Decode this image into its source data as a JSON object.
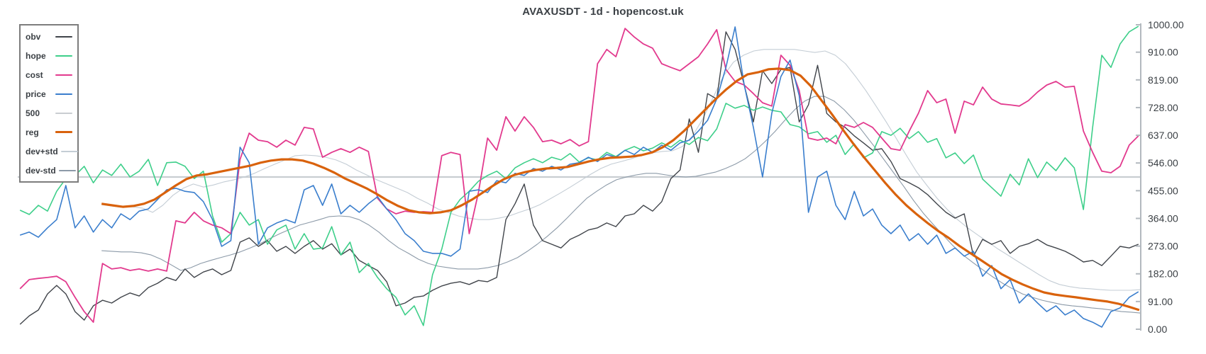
{
  "title": "AVAXUSDT - 1d - hopencost.uk",
  "axis": {
    "side": "right",
    "line_color": "#b3b9bf",
    "tick_color": "#b3b9bf",
    "label_color": "#3b4045",
    "tick_labels": [
      "1000.00",
      "910.00",
      "819.00",
      "728.00",
      "637.00",
      "546.00",
      "455.00",
      "364.00",
      "273.00",
      "182.00",
      "91.00",
      "0.00"
    ],
    "tick_values": [
      1000,
      910,
      819,
      728,
      637,
      546,
      455,
      364,
      273,
      182,
      91,
      0
    ]
  },
  "legend": {
    "items": [
      "obv",
      "hope",
      "cost",
      "price",
      "500",
      "reg",
      "dev+std",
      "dev-std"
    ]
  },
  "chart_data": {
    "type": "line",
    "title": "AVAXUSDT - 1d - hopencost.uk",
    "xlabel": "",
    "ylabel": "",
    "x_range_days": [
      0,
      245
    ],
    "ylim": [
      0,
      1000
    ],
    "grid": false,
    "legend_position": "top-left",
    "draw_order": [
      "500",
      "dev+std",
      "dev-std",
      "obv",
      "hope",
      "cost",
      "price",
      "reg"
    ],
    "series": [
      {
        "name": "obv",
        "color": "#40444a",
        "width": 1.4,
        "x0": 0.5,
        "dx": 2.0,
        "values": [
          16,
          44,
          63,
          116,
          144,
          116,
          58,
          30,
          77,
          95,
          86,
          105,
          119,
          109,
          137,
          151,
          170,
          160,
          198,
          170,
          188,
          198,
          179,
          193,
          286,
          300,
          272,
          291,
          256,
          272,
          249,
          272,
          291,
          263,
          281,
          244,
          263,
          226,
          209,
          193,
          156,
          77,
          86,
          105,
          109,
          128,
          142,
          151,
          156,
          147,
          160,
          156,
          170,
          360,
          412,
          477,
          342,
          291,
          279,
          267,
          295,
          309,
          326,
          333,
          349,
          337,
          372,
          379,
          407,
          388,
          419,
          495,
          523,
          691,
          581,
          774,
          756,
          977,
          919,
          802,
          681,
          849,
          807,
          853,
          860,
          681,
          737,
          867,
          709,
          681,
          663,
          635,
          612,
          588,
          593,
          551,
          495,
          481,
          465,
          442,
          412,
          384,
          365,
          379,
          240,
          295,
          279,
          291,
          249,
          272,
          281,
          295,
          277,
          267,
          256,
          240,
          221,
          226,
          209,
          240,
          272,
          267,
          279
        ]
      },
      {
        "name": "hope",
        "color": "#3ecf8a",
        "width": 1.6,
        "x0": 0.5,
        "dx": 2.0,
        "values": [
          391,
          377,
          407,
          388,
          453,
          495,
          505,
          535,
          481,
          523,
          505,
          542,
          500,
          519,
          558,
          472,
          547,
          549,
          535,
          495,
          519,
          372,
          286,
          314,
          384,
          342,
          360,
          279,
          326,
          342,
          263,
          314,
          263,
          267,
          337,
          244,
          286,
          186,
          216,
          170,
          133,
          105,
          47,
          77,
          12,
          179,
          263,
          384,
          426,
          453,
          486,
          505,
          519,
          495,
          530,
          547,
          560,
          547,
          565,
          556,
          577,
          549,
          563,
          556,
          581,
          567,
          588,
          600,
          586,
          595,
          612,
          598,
          621,
          607,
          630,
          619,
          658,
          742,
          726,
          735,
          719,
          730,
          719,
          714,
          672,
          665,
          642,
          649,
          614,
          637,
          574,
          609,
          563,
          579,
          649,
          637,
          660,
          626,
          649,
          614,
          626,
          563,
          579,
          544,
          572,
          493,
          465,
          437,
          509,
          474,
          560,
          498,
          549,
          521,
          563,
          530,
          393,
          663,
          900,
          860,
          937,
          977,
          995
        ]
      },
      {
        "name": "cost",
        "color": "#e23a8e",
        "width": 1.8,
        "x0": 0.5,
        "dx": 2.0,
        "values": [
          133,
          163,
          167,
          170,
          174,
          156,
          105,
          58,
          23,
          216,
          198,
          202,
          193,
          198,
          191,
          198,
          191,
          356,
          349,
          384,
          356,
          342,
          333,
          314,
          558,
          644,
          621,
          616,
          598,
          621,
          605,
          663,
          658,
          565,
          581,
          593,
          581,
          598,
          584,
          430,
          395,
          379,
          388,
          384,
          386,
          384,
          570,
          581,
          574,
          314,
          449,
          628,
          588,
          698,
          651,
          698,
          663,
          616,
          621,
          609,
          623,
          602,
          616,
          872,
          919,
          895,
          988,
          960,
          937,
          923,
          872,
          860,
          849,
          872,
          895,
          937,
          984,
          853,
          814,
          802,
          774,
          744,
          733,
          900,
          867,
          784,
          628,
          621,
          628,
          609,
          672,
          663,
          679,
          663,
          628,
          593,
          588,
          651,
          709,
          784,
          744,
          756,
          644,
          749,
          737,
          795,
          756,
          740,
          737,
          733,
          751,
          779,
          802,
          814,
          795,
          798,
          651,
          581,
          519,
          514,
          535,
          605,
          635
        ]
      },
      {
        "name": "price",
        "color": "#3a7ecd",
        "width": 1.6,
        "x0": 0.5,
        "dx": 2.0,
        "values": [
          309,
          319,
          302,
          333,
          360,
          472,
          333,
          372,
          319,
          360,
          333,
          379,
          360,
          388,
          395,
          426,
          458,
          463,
          453,
          449,
          419,
          360,
          272,
          291,
          598,
          547,
          279,
          333,
          349,
          360,
          349,
          458,
          472,
          407,
          477,
          379,
          407,
          384,
          412,
          435,
          395,
          360,
          314,
          291,
          256,
          249,
          249,
          240,
          263,
          453,
          458,
          449,
          488,
          481,
          512,
          505,
          528,
          519,
          535,
          523,
          542,
          547,
          565,
          551,
          574,
          565,
          588,
          574,
          598,
          581,
          605,
          588,
          612,
          621,
          651,
          686,
          756,
          860,
          993,
          802,
          663,
          500,
          709,
          830,
          884,
          767,
          384,
          500,
          519,
          407,
          360,
          453,
          372,
          395,
          342,
          314,
          342,
          291,
          314,
          279,
          309,
          249,
          267,
          240,
          256,
          174,
          209,
          133,
          163,
          86,
          116,
          86,
          58,
          77,
          47,
          63,
          35,
          23,
          7,
          58,
          70,
          105,
          123
        ]
      },
      {
        "name": "500",
        "color": "#c9cdd1",
        "width": 2.2,
        "x0": 0,
        "dx": 245,
        "values": [
          500,
          500
        ]
      },
      {
        "name": "reg",
        "color": "#d9620c",
        "width": 3.2,
        "x0": 18.3,
        "dx": 2.31,
        "values": [
          412,
          407,
          402,
          405,
          412,
          426,
          449,
          472,
          493,
          505,
          509,
          516,
          523,
          530,
          537,
          547,
          554,
          558,
          558,
          554,
          544,
          530,
          514,
          495,
          479,
          463,
          444,
          423,
          405,
          391,
          384,
          381,
          384,
          391,
          407,
          426,
          449,
          472,
          493,
          507,
          516,
          523,
          528,
          530,
          533,
          542,
          551,
          558,
          563,
          565,
          567,
          572,
          581,
          598,
          621,
          651,
          686,
          721,
          756,
          788,
          816,
          837,
          844,
          854,
          856,
          851,
          833,
          798,
          751,
          705,
          656,
          609,
          565,
          523,
          481,
          442,
          407,
          377,
          349,
          323,
          300,
          274,
          251,
          228,
          205,
          181,
          163,
          147,
          133,
          121,
          114,
          109,
          105,
          100,
          95,
          91,
          84,
          74,
          63
        ]
      },
      {
        "name": "dev+std",
        "color": "#c4cdd5",
        "width": 1.1,
        "x0": 18.3,
        "dx": 2.223,
        "values": [
          409,
          405,
          400,
          402,
          398,
          384,
          407,
          440,
          463,
          477,
          467,
          474,
          484,
          491,
          500,
          512,
          528,
          542,
          556,
          570,
          572,
          570,
          565,
          556,
          542,
          523,
          507,
          491,
          477,
          463,
          449,
          430,
          414,
          395,
          384,
          372,
          365,
          360,
          360,
          365,
          372,
          384,
          395,
          409,
          428,
          447,
          467,
          488,
          509,
          528,
          542,
          551,
          560,
          572,
          579,
          584,
          586,
          600,
          635,
          691,
          760,
          830,
          877,
          900,
          914,
          919,
          919,
          919,
          919,
          914,
          909,
          914,
          900,
          872,
          830,
          784,
          733,
          681,
          626,
          570,
          516,
          472,
          430,
          393,
          360,
          333,
          309,
          286,
          263,
          242,
          221,
          200,
          179,
          160,
          147,
          140,
          135,
          133,
          130,
          128,
          128,
          128,
          130
        ]
      },
      {
        "name": "dev-std",
        "color": "#8c9aa8",
        "width": 1.1,
        "x0": 18.3,
        "dx": 2.16,
        "values": [
          258,
          256,
          254,
          254,
          251,
          244,
          230,
          212,
          193,
          202,
          216,
          226,
          235,
          244,
          254,
          267,
          281,
          298,
          314,
          328,
          342,
          351,
          360,
          370,
          372,
          370,
          360,
          342,
          319,
          291,
          267,
          249,
          230,
          216,
          207,
          202,
          198,
          198,
          198,
          202,
          209,
          221,
          235,
          256,
          279,
          305,
          333,
          365,
          398,
          430,
          453,
          474,
          491,
          500,
          507,
          512,
          512,
          507,
          502,
          500,
          502,
          509,
          516,
          528,
          542,
          560,
          586,
          616,
          649,
          686,
          721,
          749,
          765,
          765,
          749,
          721,
          686,
          644,
          602,
          558,
          514,
          470,
          423,
          381,
          344,
          309,
          274,
          244,
          219,
          195,
          172,
          151,
          133,
          116,
          105,
          95,
          88,
          81,
          77,
          74,
          70,
          67,
          63,
          58,
          56,
          53
        ]
      }
    ]
  }
}
